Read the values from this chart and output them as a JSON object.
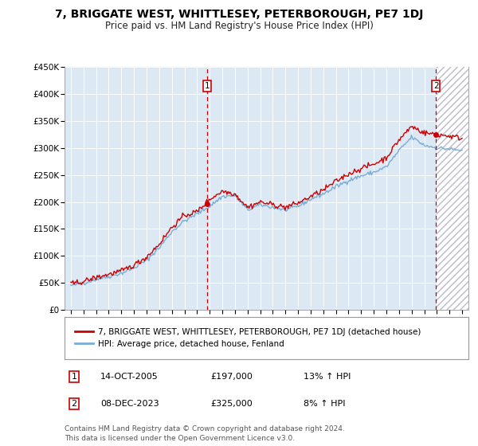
{
  "title": "7, BRIGGATE WEST, WHITTLESEY, PETERBOROUGH, PE7 1DJ",
  "subtitle": "Price paid vs. HM Land Registry's House Price Index (HPI)",
  "bg_color": "#dce9f5",
  "red_line_color": "#cc0000",
  "blue_line_color": "#7aadd4",
  "marker_color": "#cc0000",
  "ylim": [
    0,
    450000
  ],
  "yticks": [
    0,
    50000,
    100000,
    150000,
    200000,
    250000,
    300000,
    350000,
    400000,
    450000
  ],
  "ytick_labels": [
    "£0",
    "£50K",
    "£100K",
    "£150K",
    "£200K",
    "£250K",
    "£300K",
    "£350K",
    "£400K",
    "£450K"
  ],
  "xlim_start": 1994.5,
  "xlim_end": 2026.5,
  "xtick_years": [
    1995,
    1996,
    1997,
    1998,
    1999,
    2000,
    2001,
    2002,
    2003,
    2004,
    2005,
    2006,
    2007,
    2008,
    2009,
    2010,
    2011,
    2012,
    2013,
    2014,
    2015,
    2016,
    2017,
    2018,
    2019,
    2020,
    2021,
    2022,
    2023,
    2024,
    2025,
    2026
  ],
  "sale1_x": 2005.79,
  "sale1_y": 197000,
  "sale1_label": "1",
  "sale1_date": "14-OCT-2005",
  "sale1_price": "£197,000",
  "sale1_hpi": "13% ↑ HPI",
  "sale2_x": 2023.93,
  "sale2_y": 325000,
  "sale2_label": "2",
  "sale2_date": "08-DEC-2023",
  "sale2_price": "£325,000",
  "sale2_hpi": "8% ↑ HPI",
  "legend_red_label": "7, BRIGGATE WEST, WHITTLESEY, PETERBOROUGH, PE7 1DJ (detached house)",
  "legend_blue_label": "HPI: Average price, detached house, Fenland",
  "footer": "Contains HM Land Registry data © Crown copyright and database right 2024.\nThis data is licensed under the Open Government Licence v3.0.",
  "hatch_start": 2024.0,
  "hatch_end": 2026.5
}
